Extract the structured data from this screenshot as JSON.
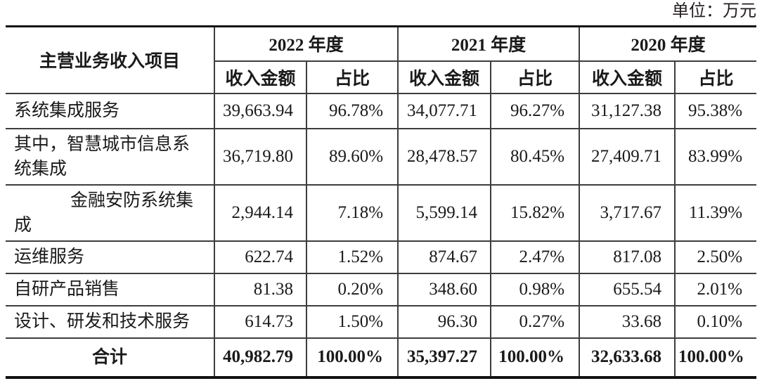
{
  "unit_label": "单位：万元",
  "colors": {
    "text": "#1a1a1a",
    "border": "#3d3d3d",
    "rule": "#111111",
    "background": "#ffffff"
  },
  "table": {
    "item_header": "主营业务收入项目",
    "year_groups": [
      {
        "label": "2022 年度",
        "sub": [
          "收入金额",
          "占比"
        ]
      },
      {
        "label": "2021 年度",
        "sub": [
          "收入金额",
          "占比"
        ]
      },
      {
        "label": "2020 年度",
        "sub": [
          "收入金额",
          "占比"
        ]
      }
    ],
    "rows": [
      {
        "item": "系统集成服务",
        "indent": false,
        "values": [
          "39,663.94",
          "96.78%",
          "34,077.71",
          "96.27%",
          "31,127.38",
          "95.38%"
        ]
      },
      {
        "item": "其中，智慧城市信息系统集成",
        "indent": false,
        "values": [
          "36,719.80",
          "89.60%",
          "28,478.57",
          "80.45%",
          "27,409.71",
          "83.99%"
        ]
      },
      {
        "item": "金融安防系统集成",
        "indent": true,
        "values": [
          "2,944.14",
          "7.18%",
          "5,599.14",
          "15.82%",
          "3,717.67",
          "11.39%"
        ]
      },
      {
        "item": "运维服务",
        "indent": false,
        "values": [
          "622.74",
          "1.52%",
          "874.67",
          "2.47%",
          "817.08",
          "2.50%"
        ]
      },
      {
        "item": "自研产品销售",
        "indent": false,
        "values": [
          "81.38",
          "0.20%",
          "348.60",
          "0.98%",
          "655.54",
          "2.01%"
        ]
      },
      {
        "item": "设计、研发和技术服务",
        "indent": false,
        "values": [
          "614.73",
          "1.50%",
          "96.30",
          "0.27%",
          "33.68",
          "0.10%"
        ]
      }
    ],
    "total_row": {
      "item": "合计",
      "values": [
        "40,982.79",
        "100.00%",
        "35,397.27",
        "100.00%",
        "32,633.68",
        "100.00%"
      ]
    }
  }
}
